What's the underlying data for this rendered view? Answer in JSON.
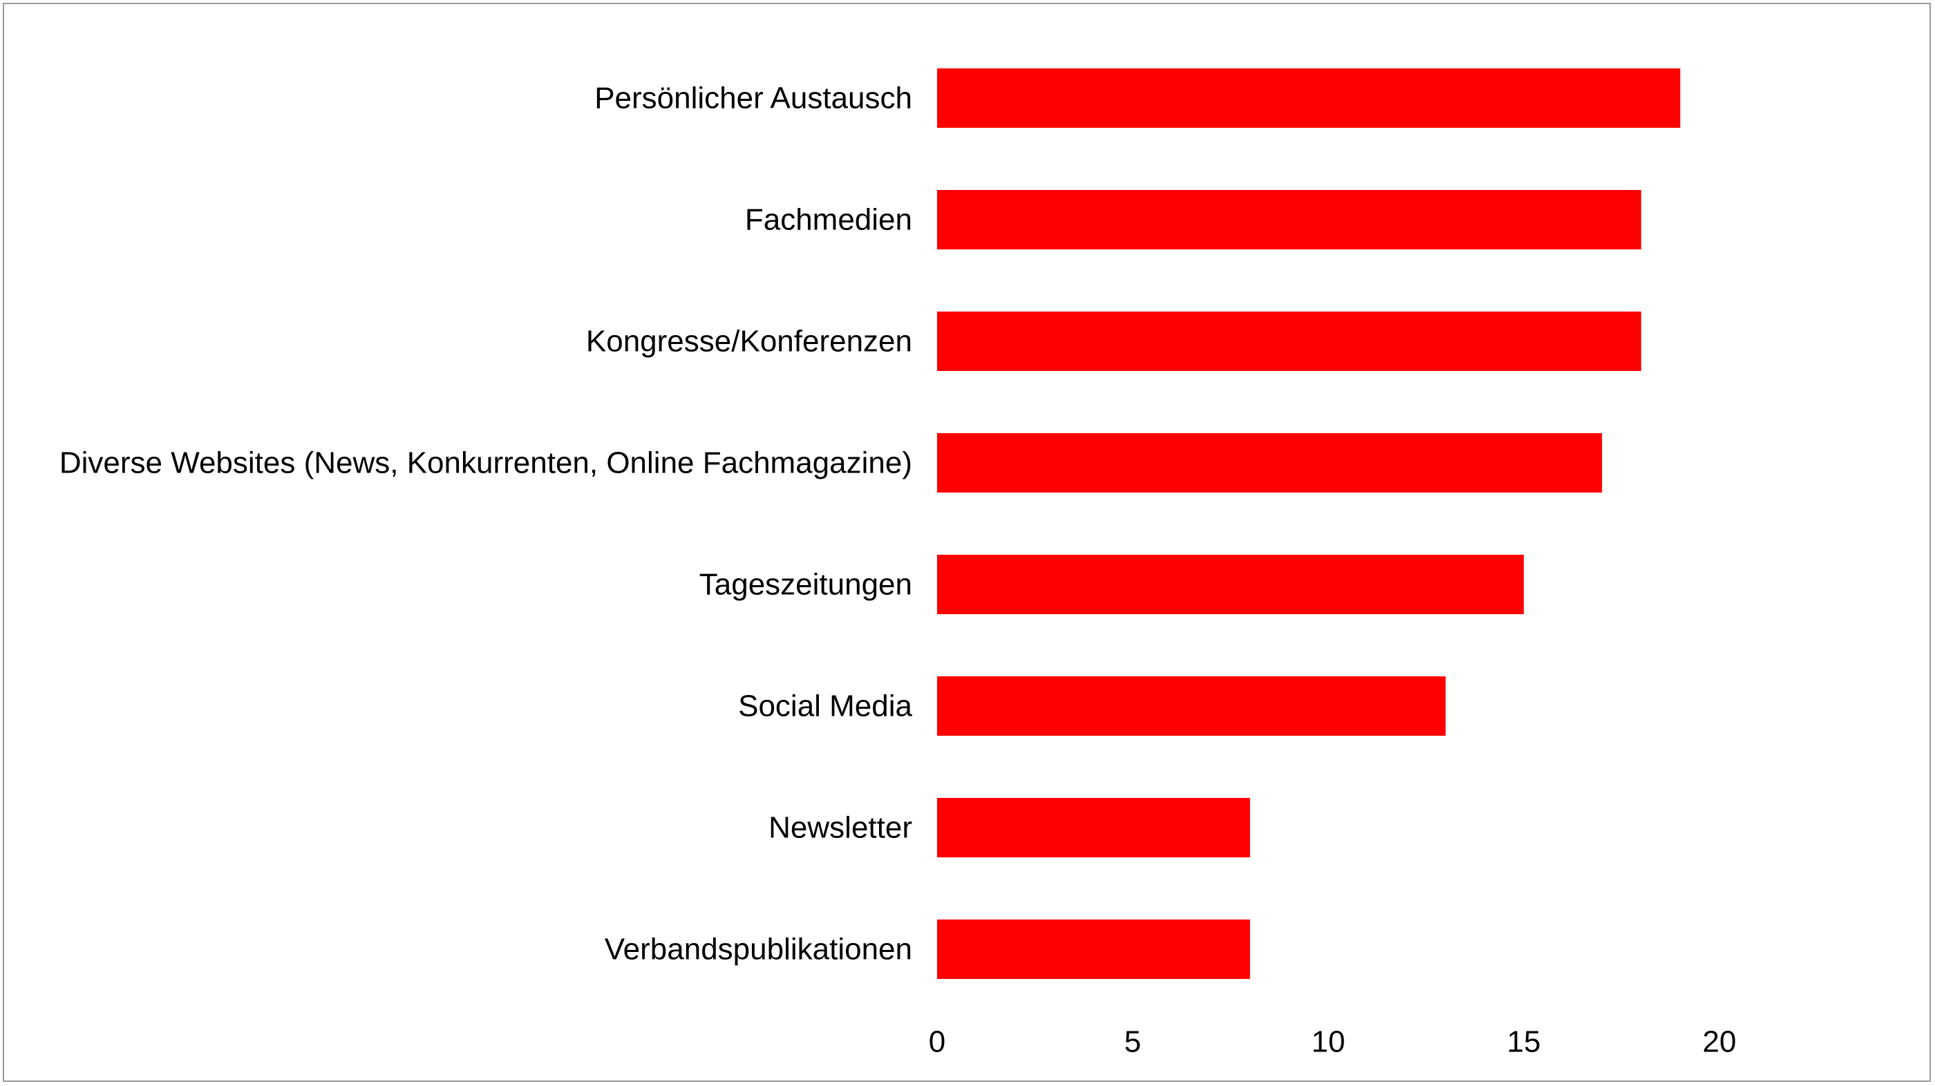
{
  "chart_data": {
    "type": "bar",
    "orientation": "horizontal",
    "categories": [
      "Persönlicher Austausch",
      "Fachmedien",
      "Kongresse/Konferenzen",
      "Diverse Websites (News, Konkurrenten, Online Fachmagazine)",
      "Tageszeitungen",
      "Social Media",
      "Newsletter",
      "Verbandspublikationen"
    ],
    "values": [
      19,
      18,
      18,
      17,
      15,
      13,
      8,
      8
    ],
    "xlim": [
      0,
      20
    ],
    "xticks": [
      "0",
      "5",
      "10",
      "15",
      "20"
    ],
    "title": "",
    "xlabel": "",
    "ylabel": "",
    "grid": false,
    "legend": "none",
    "bar_color": "#ff0000"
  }
}
